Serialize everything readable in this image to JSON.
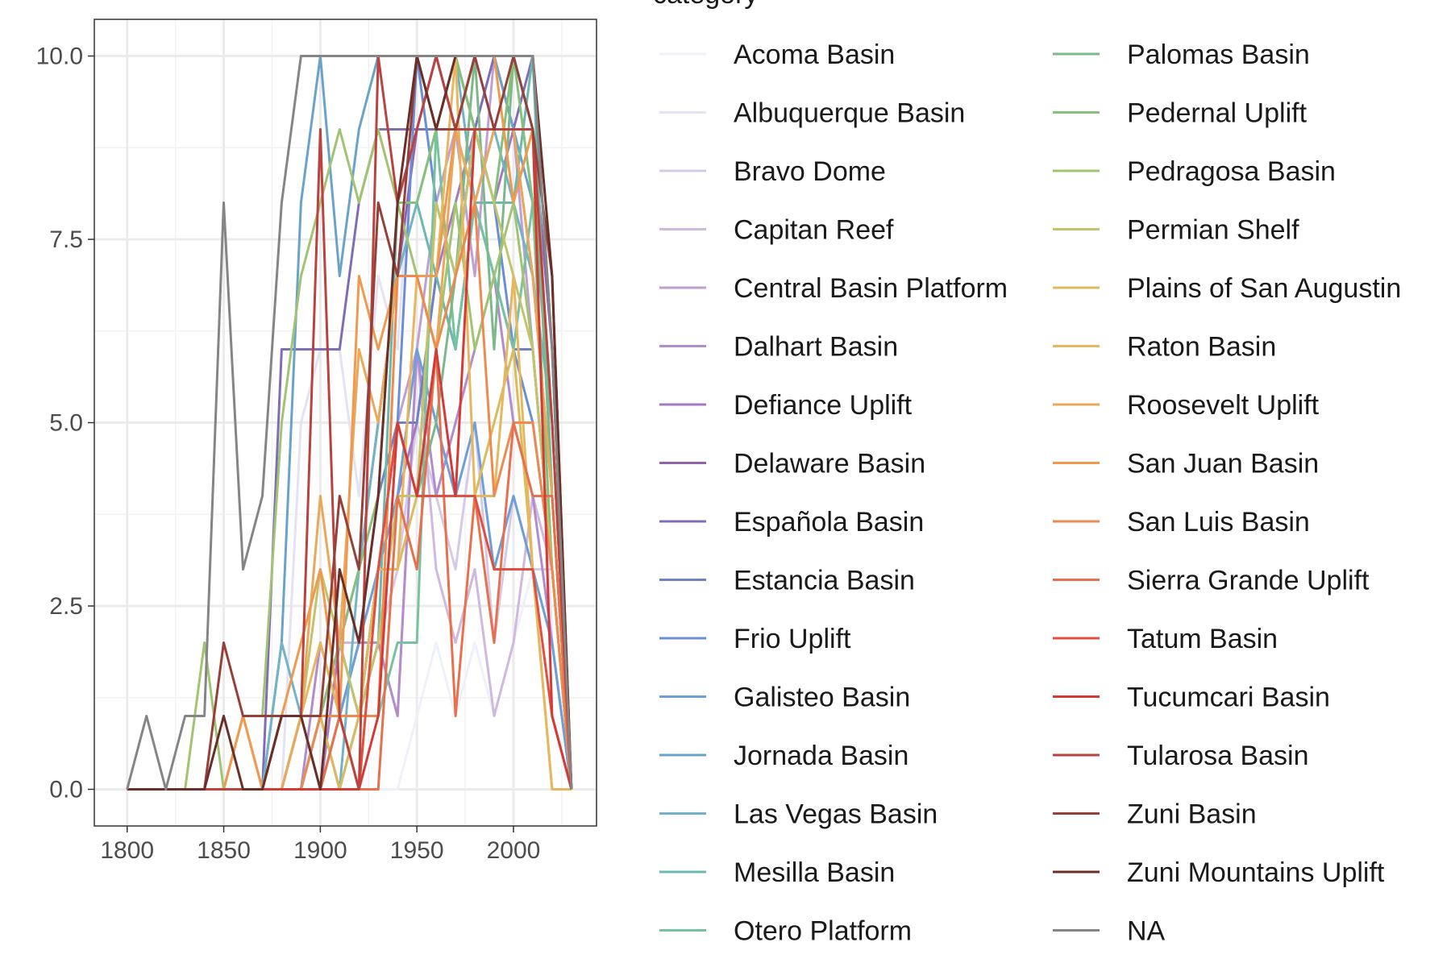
{
  "chart_data": {
    "type": "line",
    "title": "",
    "xlabel": "",
    "ylabel": "",
    "xlim": [
      1783,
      2043
    ],
    "ylim": [
      -0.5,
      10.5
    ],
    "x_ticks": [
      1800,
      1850,
      1900,
      1950,
      2000
    ],
    "x_tick_labels": [
      "1800",
      "1850",
      "1900",
      "1950",
      "2000"
    ],
    "y_ticks": [
      0,
      2.5,
      5,
      7.5,
      10
    ],
    "y_tick_labels": [
      "0.0",
      "2.5",
      "5.0",
      "7.5",
      "10.0"
    ],
    "grid": true,
    "legend": {
      "title": "category",
      "position": "right",
      "columns": 2
    },
    "x": [
      1800,
      1810,
      1820,
      1830,
      1840,
      1850,
      1860,
      1870,
      1880,
      1890,
      1900,
      1910,
      1920,
      1930,
      1940,
      1950,
      1960,
      1970,
      1980,
      1990,
      2000,
      2010,
      2020,
      2030
    ],
    "series": [
      {
        "name": "Acoma Basin",
        "color": "#eef0fa",
        "values": [
          0,
          0,
          0,
          0,
          0,
          0,
          0,
          0,
          0,
          0,
          0,
          0,
          0,
          0,
          0,
          1,
          2,
          1,
          2,
          1,
          2,
          3,
          2,
          0
        ]
      },
      {
        "name": "Albuquerque Basin",
        "color": "#e4e2f3",
        "values": [
          0,
          0,
          0,
          0,
          0,
          0,
          0,
          0,
          0,
          5,
          6,
          6,
          4,
          7,
          6,
          10,
          8,
          9,
          10,
          9,
          10,
          8,
          2,
          0
        ]
      },
      {
        "name": "Bravo Dome",
        "color": "#d6cbe6",
        "values": [
          0,
          0,
          0,
          0,
          0,
          0,
          0,
          0,
          0,
          0,
          0,
          2,
          1,
          2,
          3,
          5,
          4,
          3,
          5,
          2,
          4,
          3,
          3,
          0
        ]
      },
      {
        "name": "Capitan Reef",
        "color": "#cfb9df",
        "values": [
          0,
          0,
          0,
          0,
          0,
          0,
          0,
          0,
          0,
          0,
          1,
          2,
          2,
          2,
          1,
          6,
          3,
          2,
          3,
          1,
          2,
          4,
          3,
          0
        ]
      },
      {
        "name": "Central Basin Platform",
        "color": "#bea0d3",
        "values": [
          0,
          0,
          0,
          0,
          0,
          0,
          0,
          0,
          0,
          0,
          0,
          1,
          1,
          3,
          5,
          6,
          8,
          9,
          7,
          10,
          9,
          6,
          3,
          0
        ]
      },
      {
        "name": "Dalhart Basin",
        "color": "#b38ccc",
        "values": [
          0,
          0,
          0,
          0,
          0,
          0,
          0,
          0,
          0,
          0,
          2,
          1,
          2,
          2,
          1,
          6,
          4,
          5,
          6,
          7,
          5,
          4,
          2,
          0
        ]
      },
      {
        "name": "Defiance Uplift",
        "color": "#a579bf",
        "values": [
          0,
          0,
          0,
          0,
          0,
          0,
          0,
          0,
          0,
          0,
          0,
          2,
          1,
          3,
          4,
          5,
          7,
          8,
          9,
          8,
          9,
          7,
          4,
          0
        ]
      },
      {
        "name": "Delaware Basin",
        "color": "#9162ad",
        "values": [
          0,
          0,
          0,
          0,
          0,
          0,
          0,
          0,
          0,
          0,
          1,
          2,
          3,
          5,
          7,
          9,
          10,
          9,
          10,
          10,
          10,
          9,
          6,
          0
        ]
      },
      {
        "name": "Española Basin",
        "color": "#7f6eb5",
        "values": [
          0,
          0,
          0,
          0,
          0,
          0,
          0,
          0,
          6,
          6,
          6,
          6,
          8,
          9,
          9,
          9,
          9,
          10,
          9,
          10,
          9,
          10,
          6,
          0
        ]
      },
      {
        "name": "Estancia Basin",
        "color": "#6f83c4",
        "values": [
          0,
          0,
          0,
          0,
          0,
          0,
          0,
          0,
          0,
          1,
          1,
          1,
          2,
          4,
          5,
          5,
          7,
          6,
          8,
          7,
          6,
          6,
          3,
          0
        ]
      },
      {
        "name": "Frio Uplift",
        "color": "#6b8fd6",
        "values": [
          0,
          0,
          0,
          0,
          0,
          0,
          0,
          0,
          0,
          0,
          1,
          0,
          1,
          3,
          5,
          10,
          8,
          7,
          9,
          8,
          6,
          5,
          3,
          0
        ]
      },
      {
        "name": "Galisteo Basin",
        "color": "#6e9fd8",
        "values": [
          0,
          0,
          0,
          0,
          0,
          0,
          0,
          0,
          0,
          1,
          0,
          1,
          2,
          3,
          4,
          6,
          5,
          4,
          5,
          3,
          4,
          3,
          2,
          0
        ]
      },
      {
        "name": "Jornada Basin",
        "color": "#6aa3c9",
        "values": [
          0,
          0,
          0,
          0,
          0,
          0,
          0,
          0,
          2,
          8,
          10,
          7,
          9,
          10,
          10,
          10,
          10,
          9,
          10,
          10,
          9,
          8,
          5,
          0
        ]
      },
      {
        "name": "Las Vegas Basin",
        "color": "#73b3c6",
        "values": [
          0,
          0,
          0,
          0,
          0,
          0,
          0,
          0,
          2,
          1,
          1,
          0,
          3,
          5,
          7,
          8,
          9,
          10,
          8,
          9,
          8,
          7,
          5,
          0
        ]
      },
      {
        "name": "Mesilla Basin",
        "color": "#6db8ae",
        "values": [
          0,
          0,
          0,
          0,
          0,
          0,
          0,
          0,
          0,
          1,
          1,
          1,
          1,
          2,
          8,
          8,
          7,
          6,
          8,
          8,
          8,
          10,
          4,
          0
        ]
      },
      {
        "name": "Otero Platform",
        "color": "#77c2a0",
        "values": [
          0,
          0,
          0,
          0,
          0,
          0,
          0,
          0,
          0,
          1,
          0,
          1,
          1,
          1,
          2,
          2,
          9,
          6,
          8,
          7,
          6,
          8,
          3,
          0
        ]
      },
      {
        "name": "Palomas Basin",
        "color": "#7cb88a",
        "values": [
          0,
          0,
          0,
          0,
          0,
          0,
          0,
          0,
          1,
          1,
          1,
          1,
          1,
          2,
          4,
          4,
          5,
          7,
          10,
          6,
          10,
          9,
          4,
          0
        ]
      },
      {
        "name": "Pedernal Uplift",
        "color": "#86c17a",
        "values": [
          0,
          0,
          0,
          0,
          0,
          0,
          0,
          0,
          0,
          0,
          1,
          2,
          3,
          4,
          8,
          8,
          9,
          10,
          9,
          8,
          10,
          8,
          3,
          0
        ]
      },
      {
        "name": "Pedragosa Basin",
        "color": "#a2c472",
        "values": [
          0,
          0,
          0,
          0,
          2,
          0,
          1,
          1,
          5,
          7,
          8,
          9,
          8,
          9,
          8,
          7,
          6,
          8,
          6,
          7,
          8,
          6,
          3,
          0
        ]
      },
      {
        "name": "Permian Shelf",
        "color": "#c3c36c",
        "values": [
          0,
          0,
          0,
          0,
          0,
          0,
          0,
          0,
          0,
          1,
          3,
          2,
          1,
          2,
          4,
          4,
          8,
          7,
          9,
          8,
          7,
          6,
          3,
          0
        ]
      },
      {
        "name": "Plains of San Augustin",
        "color": "#dcbb5c",
        "values": [
          0,
          0,
          0,
          0,
          0,
          0,
          0,
          0,
          0,
          1,
          1,
          0,
          1,
          3,
          3,
          4,
          4,
          4,
          4,
          5,
          6,
          3,
          0,
          0
        ]
      },
      {
        "name": "Raton Basin",
        "color": "#e6b75f",
        "values": [
          0,
          0,
          0,
          0,
          0,
          0,
          0,
          0,
          0,
          1,
          2,
          1,
          0,
          3,
          3,
          7,
          7,
          10,
          4,
          4,
          7,
          3,
          0,
          0
        ]
      },
      {
        "name": "Roosevelt Uplift",
        "color": "#e9a85a",
        "values": [
          0,
          0,
          0,
          0,
          0,
          0,
          1,
          0,
          0,
          1,
          4,
          2,
          6,
          5,
          7,
          7,
          6,
          9,
          8,
          9,
          9,
          7,
          4,
          0
        ]
      },
      {
        "name": "San Juan Basin",
        "color": "#ef9a4f",
        "values": [
          0,
          0,
          0,
          0,
          0,
          0,
          1,
          0,
          1,
          2,
          3,
          1,
          7,
          6,
          7,
          7,
          7,
          9,
          10,
          10,
          8,
          9,
          5,
          0
        ]
      },
      {
        "name": "San Luis Basin",
        "color": "#ee8a4f",
        "values": [
          0,
          0,
          0,
          0,
          0,
          0,
          0,
          0,
          0,
          0,
          1,
          1,
          1,
          1,
          7,
          7,
          6,
          7,
          8,
          4,
          5,
          5,
          3,
          0
        ]
      },
      {
        "name": "Sierra Grande Uplift",
        "color": "#e7704e",
        "values": [
          0,
          0,
          0,
          0,
          0,
          0,
          0,
          0,
          0,
          0,
          0,
          1,
          0,
          0,
          4,
          3,
          6,
          1,
          4,
          2,
          5,
          4,
          4,
          0
        ]
      },
      {
        "name": "Tatum Basin",
        "color": "#e04f3f",
        "values": [
          0,
          0,
          0,
          0,
          0,
          0,
          0,
          0,
          0,
          0,
          0,
          0,
          0,
          3,
          5,
          4,
          4,
          4,
          4,
          3,
          3,
          3,
          1,
          0
        ]
      },
      {
        "name": "Tucumcari Basin",
        "color": "#d33b36",
        "values": [
          0,
          0,
          0,
          0,
          0,
          0,
          0,
          0,
          0,
          0,
          0,
          0,
          0,
          1,
          5,
          4,
          6,
          4,
          9,
          9,
          9,
          9,
          1,
          0
        ]
      },
      {
        "name": "Tularosa Basin",
        "color": "#b8433f",
        "values": [
          0,
          0,
          0,
          0,
          0,
          0,
          0,
          0,
          1,
          1,
          9,
          1,
          0,
          10,
          8,
          9,
          10,
          9,
          9,
          9,
          9,
          9,
          5,
          0
        ]
      },
      {
        "name": "Zuni Basin",
        "color": "#96403a",
        "values": [
          0,
          0,
          0,
          0,
          0,
          2,
          1,
          1,
          1,
          1,
          1,
          4,
          3,
          8,
          7,
          10,
          9,
          9,
          10,
          9,
          10,
          9,
          7,
          0
        ]
      },
      {
        "name": "Zuni Mountains Uplift",
        "color": "#6a2f28",
        "values": [
          0,
          0,
          0,
          0,
          0,
          1,
          0,
          0,
          1,
          1,
          0,
          3,
          2,
          4,
          8,
          10,
          9,
          10,
          10,
          10,
          10,
          10,
          7,
          0
        ]
      },
      {
        "name": "NA",
        "color": "#858585",
        "values": [
          0,
          1,
          0,
          1,
          1,
          8,
          3,
          4,
          8,
          10,
          10,
          10,
          10,
          10,
          10,
          10,
          10,
          10,
          10,
          10,
          10,
          10,
          6,
          0
        ]
      }
    ]
  }
}
